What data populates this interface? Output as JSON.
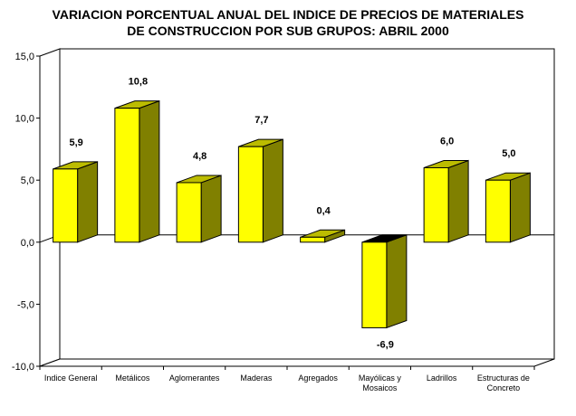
{
  "chart_data": {
    "type": "bar",
    "title_lines": [
      "VARIACION PORCENTUAL ANUAL DEL INDICE DE PRECIOS DE MATERIALES",
      "DE CONSTRUCCION POR SUB GRUPOS: ABRIL 2000"
    ],
    "categories": [
      [
        "Indice General"
      ],
      [
        "Metálicos"
      ],
      [
        "Aglomerantes"
      ],
      [
        "Maderas"
      ],
      [
        "Agregados"
      ],
      [
        "Mayólicas y",
        "Mosaicos"
      ],
      [
        "Ladrillos"
      ],
      [
        "Estructuras de",
        "Concreto"
      ]
    ],
    "values": [
      5.9,
      10.8,
      4.8,
      7.7,
      0.4,
      -6.9,
      6.0,
      5.0
    ],
    "value_labels": [
      "5,9",
      "10,8",
      "4,8",
      "7,7",
      "0,4",
      "-6,9",
      "6,0",
      "5,0"
    ],
    "ylim": [
      -10,
      15
    ],
    "yticks": [
      15,
      10,
      5,
      0,
      -5,
      -10
    ],
    "ytick_labels": [
      "15,0",
      "10,0",
      "5,0",
      "0,0",
      "-5,0",
      "-10,0"
    ],
    "grid": false,
    "legend": "none",
    "three_d": true,
    "colors": {
      "bar_front": "#ffff00",
      "bar_side": "#808000",
      "bar_top": "#bcbc00",
      "bar_top_negative": "#000000",
      "wall": "#ffffff",
      "axis": "#000000"
    }
  }
}
